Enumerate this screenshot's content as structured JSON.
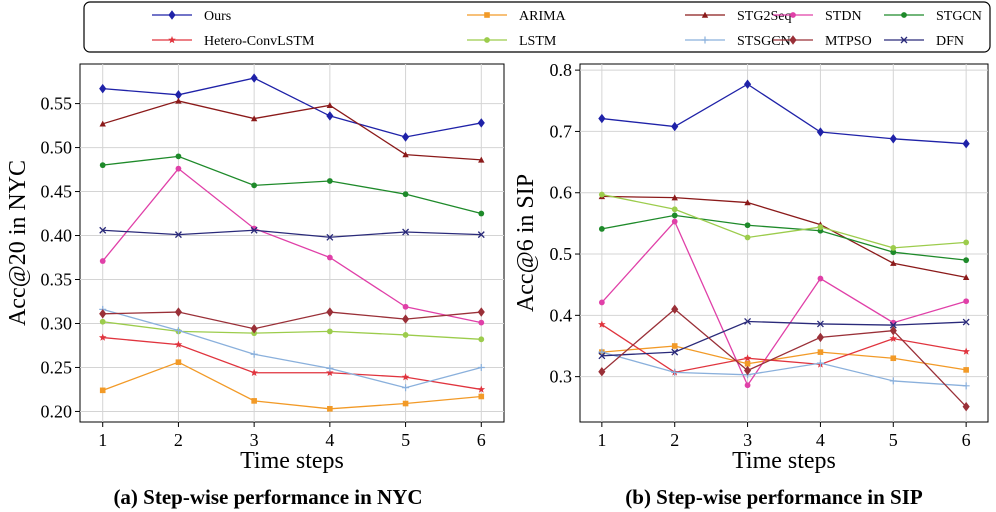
{
  "legend": [
    {
      "name": "Ours",
      "color": "#1f22a8",
      "marker": "diamond"
    },
    {
      "name": "ARIMA",
      "color": "#f29a27",
      "marker": "square"
    },
    {
      "name": "STG2Seq",
      "color": "#8b1a1a",
      "marker": "triangle"
    },
    {
      "name": "STGCN",
      "color": "#1e8a2a",
      "marker": "circle"
    },
    {
      "name": "STDN",
      "color": "#e040a8",
      "marker": "circle"
    },
    {
      "name": "Hetero-ConvLSTM",
      "color": "#e0343e",
      "marker": "star"
    },
    {
      "name": "LSTM",
      "color": "#9ccc4c",
      "marker": "circle"
    },
    {
      "name": "STSGCN",
      "color": "#8ab0dc",
      "marker": "plus"
    },
    {
      "name": "DFN",
      "color": "#2a2a7a",
      "marker": "x"
    },
    {
      "name": "MTPSO",
      "color": "#9a3038",
      "marker": "diamond"
    }
  ],
  "chart_data": [
    {
      "type": "line",
      "title": "",
      "caption": "(a) Step-wise performance in NYC",
      "xlabel": "Time steps",
      "ylabel": "Acc@20 in NYC",
      "x": [
        1,
        2,
        3,
        4,
        5,
        6
      ],
      "xticks": [
        "1",
        "2",
        "3",
        "4",
        "5",
        "6"
      ],
      "xlim": [
        0.7,
        6.3
      ],
      "ylim": [
        0.188,
        0.595
      ],
      "yticks": [
        0.2,
        0.25,
        0.3,
        0.35,
        0.4,
        0.45,
        0.5,
        0.55
      ],
      "ytick_labels": [
        "0.20",
        "0.25",
        "0.30",
        "0.35",
        "0.40",
        "0.45",
        "0.50",
        "0.55"
      ],
      "grid": true,
      "series": [
        {
          "name": "Ours",
          "values": [
            0.567,
            0.56,
            0.579,
            0.536,
            0.512,
            0.528
          ]
        },
        {
          "name": "ARIMA",
          "values": [
            0.224,
            0.256,
            0.212,
            0.203,
            0.209,
            0.217
          ]
        },
        {
          "name": "STG2Seq",
          "values": [
            0.527,
            0.553,
            0.533,
            0.548,
            0.492,
            0.486
          ]
        },
        {
          "name": "STGCN",
          "values": [
            0.48,
            0.49,
            0.457,
            0.462,
            0.447,
            0.425
          ]
        },
        {
          "name": "STDN",
          "values": [
            0.371,
            0.476,
            0.408,
            0.375,
            0.319,
            0.301
          ]
        },
        {
          "name": "Hetero-ConvLSTM",
          "values": [
            0.284,
            0.276,
            0.244,
            0.244,
            0.239,
            0.225
          ]
        },
        {
          "name": "LSTM",
          "values": [
            0.302,
            0.291,
            0.289,
            0.291,
            0.287,
            0.282
          ]
        },
        {
          "name": "STSGCN",
          "values": [
            0.316,
            0.292,
            0.265,
            0.249,
            0.227,
            0.25
          ]
        },
        {
          "name": "DFN",
          "values": [
            0.406,
            0.401,
            0.406,
            0.398,
            0.404,
            0.401
          ]
        },
        {
          "name": "MTPSO",
          "values": [
            0.311,
            0.313,
            0.294,
            0.313,
            0.305,
            0.313
          ]
        }
      ]
    },
    {
      "type": "line",
      "title": "",
      "caption": "(b) Step-wise performance in SIP",
      "xlabel": "Time steps",
      "ylabel": "Acc@6 in SIP",
      "x": [
        1,
        2,
        3,
        4,
        5,
        6
      ],
      "xticks": [
        "1",
        "2",
        "3",
        "4",
        "5",
        "6"
      ],
      "xlim": [
        0.7,
        6.3
      ],
      "ylim": [
        0.226,
        0.81
      ],
      "yticks": [
        0.3,
        0.4,
        0.5,
        0.6,
        0.7,
        0.8
      ],
      "ytick_labels": [
        "0.3",
        "0.4",
        "0.5",
        "0.6",
        "0.7",
        "0.8"
      ],
      "grid": true,
      "series": [
        {
          "name": "Ours",
          "values": [
            0.721,
            0.708,
            0.777,
            0.699,
            0.688,
            0.68
          ]
        },
        {
          "name": "ARIMA",
          "values": [
            0.34,
            0.35,
            0.321,
            0.34,
            0.33,
            0.311
          ]
        },
        {
          "name": "STG2Seq",
          "values": [
            0.594,
            0.592,
            0.584,
            0.548,
            0.485,
            0.462
          ]
        },
        {
          "name": "STGCN",
          "values": [
            0.541,
            0.563,
            0.547,
            0.538,
            0.503,
            0.49
          ]
        },
        {
          "name": "STDN",
          "values": [
            0.421,
            0.553,
            0.286,
            0.46,
            0.388,
            0.423
          ]
        },
        {
          "name": "Hetero-ConvLSTM",
          "values": [
            0.385,
            0.307,
            0.33,
            0.32,
            0.362,
            0.341
          ]
        },
        {
          "name": "LSTM",
          "values": [
            0.597,
            0.573,
            0.527,
            0.544,
            0.51,
            0.519
          ]
        },
        {
          "name": "STSGCN",
          "values": [
            0.34,
            0.307,
            0.303,
            0.322,
            0.293,
            0.285
          ]
        },
        {
          "name": "DFN",
          "values": [
            0.334,
            0.34,
            0.39,
            0.386,
            0.384,
            0.389
          ]
        },
        {
          "name": "MTPSO",
          "values": [
            0.308,
            0.41,
            0.31,
            0.364,
            0.375,
            0.251
          ]
        }
      ]
    }
  ]
}
